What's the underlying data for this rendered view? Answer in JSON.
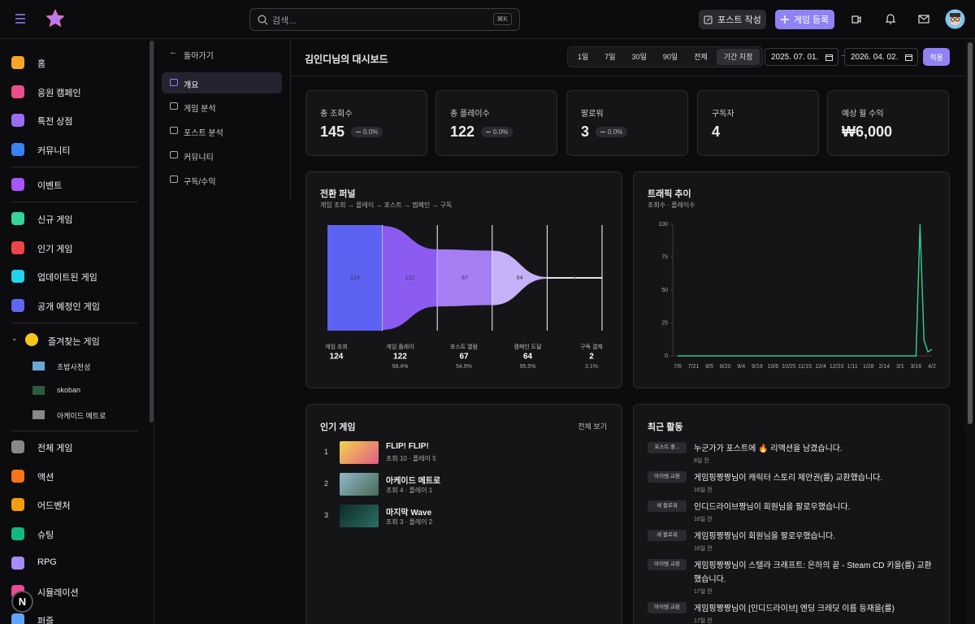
{
  "header": {
    "search_placeholder": "검색...",
    "search_shortcut": "⌘K",
    "post_button": "포스트 작성",
    "register_button": "게임 등록"
  },
  "sidebar": {
    "main": [
      "홈",
      "응원 캠페인",
      "특전 상점",
      "커뮤니티"
    ],
    "events": [
      "이벤트"
    ],
    "games": [
      "신규 게임",
      "인기 게임",
      "업데이트된 게임",
      "공개 예정인 게임"
    ],
    "favorites_title": "즐겨찾는 게임",
    "favorites": [
      "초밥사천성",
      "skoban",
      "아케이드 메트로"
    ],
    "genres": [
      "전체 게임",
      "액션",
      "어드벤처",
      "슈팅",
      "RPG",
      "시뮬레이션",
      "퍼즐"
    ]
  },
  "dev_badge": "N",
  "subnav": {
    "back": "돌아가기",
    "items": [
      "개요",
      "게임 분석",
      "포스트 분석",
      "커뮤니티",
      "구독/수익"
    ]
  },
  "dashboard": {
    "title": "김인디님의 대시보드",
    "ranges": [
      "1일",
      "7일",
      "30일",
      "90일",
      "전체",
      "기간 지정"
    ],
    "start_date": "2025. 07. 01.",
    "separator": "~",
    "end_date": "2026. 04. 02.",
    "apply": "적용"
  },
  "stats": [
    {
      "label": "총 조회수",
      "value": 145,
      "delta": "0.0%"
    },
    {
      "label": "총 플레이수",
      "value": 122,
      "delta": "0.0%"
    },
    {
      "label": "팔로워",
      "value": 3,
      "delta": "0.0%"
    },
    {
      "label": "구독자",
      "value": 4
    },
    {
      "label": "예상 월 수익",
      "value": "₩6,000"
    }
  ],
  "chart_data": [
    {
      "type": "funnel",
      "title": "전환 퍼널",
      "subtitle": "게임 조회 → 플레이 → 포스트 → 캠페인 → 구독",
      "categories": [
        "게임 조회",
        "게임 플레이",
        "포스트 열람",
        "캠페인 도달",
        "구독 결제"
      ],
      "values": [
        124,
        122,
        67,
        64,
        2
      ],
      "rates": [
        null,
        98.4,
        54.9,
        95.5,
        3.1
      ],
      "rate_labels": [
        null,
        "98.4%",
        "54.9%",
        "95.5%",
        "3.1%"
      ],
      "colors": [
        "#5d62f3",
        "#8c5cf1",
        "#a67ef3",
        "#c6b0f7",
        "#e2e2e6"
      ]
    },
    {
      "type": "line",
      "title": "트래픽 추이",
      "subtitle": "조회수 · 플레이수",
      "categories": [
        "7/6",
        null,
        null,
        null,
        "7/21",
        null,
        null,
        null,
        "8/5",
        null,
        null,
        null,
        "8/20",
        null,
        null,
        null,
        "9/4",
        null,
        null,
        null,
        "9/19",
        null,
        null,
        null,
        "10/6",
        null,
        null,
        null,
        "10/25",
        null,
        null,
        null,
        "11/15",
        null,
        null,
        null,
        "12/4",
        null,
        null,
        null,
        "12/23",
        null,
        null,
        null,
        "1/11",
        null,
        null,
        null,
        "1/28",
        null,
        null,
        null,
        "2/14",
        null,
        null,
        null,
        "3/1",
        null,
        null,
        null,
        "3/16",
        null,
        null,
        null,
        "4/2"
      ],
      "series": [
        {
          "color": "#34c38f",
          "values": [
            0,
            0,
            0,
            0,
            0,
            0,
            0,
            0,
            0,
            0,
            0,
            0,
            0,
            0,
            0,
            0,
            0,
            0,
            0,
            0,
            0,
            0,
            0,
            0,
            0,
            0,
            0,
            0,
            0,
            0,
            0,
            0,
            0,
            0,
            0,
            0,
            0,
            0,
            0,
            0,
            0,
            0,
            0,
            0,
            0,
            0,
            0,
            0,
            0,
            0,
            0,
            0,
            0,
            0,
            0,
            0,
            0,
            0,
            0,
            0,
            0,
            100,
            12,
            3,
            5
          ]
        }
      ],
      "ylim": [
        0,
        100
      ],
      "yticks": [
        0,
        25,
        50,
        75,
        100
      ],
      "grid": false
    }
  ],
  "popular_games": {
    "title": "인기 게임",
    "view_all": "전체 보기",
    "items": [
      {
        "rank": 1,
        "title": "FLIP! FLIP!",
        "stats": "조회 10 · 플레이 5"
      },
      {
        "rank": 2,
        "title": "아케이드 메트로",
        "stats": "조회 4 · 플레이 1"
      },
      {
        "rank": 3,
        "title": "마지막 Wave",
        "stats": "조회 3 · 플레이 2"
      }
    ]
  },
  "recent_activity": {
    "title": "최근 활동",
    "items": [
      {
        "badge": "포스트 좋...",
        "text": "누군가가 포스트에 🔥 리액션을 남겼습니다.",
        "time": "8일 전"
      },
      {
        "badge": "아이템 교환",
        "text": "게임핑짱짱님이 캐릭터 스토리 제안권(를) 교환했습니다.",
        "time": "16일 전"
      },
      {
        "badge": "새 팔로워",
        "text": "인디드라이브짱님이 회원님을 팔로우했습니다.",
        "time": "16일 전"
      },
      {
        "badge": "새 팔로워",
        "text": "게임핑짱짱님이 회원님을 팔로우했습니다.",
        "time": "16일 전"
      },
      {
        "badge": "아이템 교환",
        "text": "게임핑짱짱님이 스텔라 크래프트: 은하의 끝 - Steam CD 키을(를) 교환했습니다.",
        "time": "17일 전"
      },
      {
        "badge": "아이템 교환",
        "text": "게임핑짱짱님이 [인디드라이브] 엔딩 크레딧 이름 등재을(를)",
        "time": "17일 전"
      }
    ]
  }
}
